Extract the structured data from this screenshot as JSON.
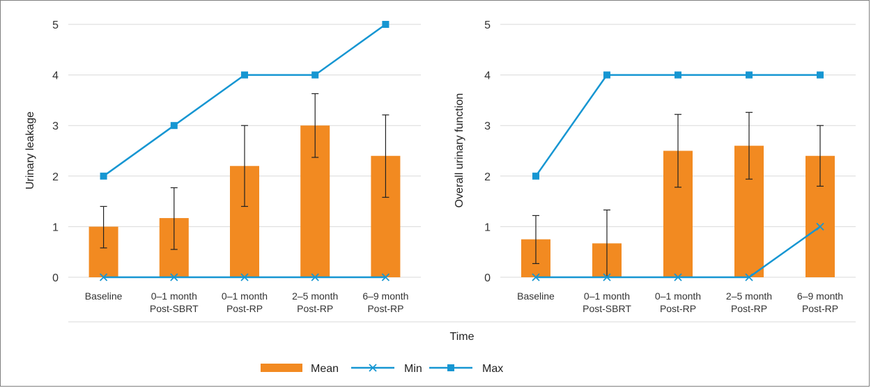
{
  "chart_data": [
    {
      "type": "bar",
      "title": "",
      "ylabel": "Urinary leakage",
      "xlabel": "Time",
      "ylim": [
        0,
        5
      ],
      "yticks": [
        0,
        1,
        2,
        3,
        4,
        5
      ],
      "grid": "horizontal",
      "categories": [
        [
          "Baseline"
        ],
        [
          "0–1 month",
          "Post-SBRT"
        ],
        [
          "0–1 month",
          "Post-RP"
        ],
        [
          "2–5 month",
          "Post-RP"
        ],
        [
          "6–9 month",
          "Post-RP"
        ]
      ],
      "series": [
        {
          "name": "Mean",
          "kind": "bar",
          "color": "#F28A21",
          "values": [
            1.0,
            1.17,
            2.2,
            3.0,
            2.4
          ],
          "error": [
            [
              0.58,
              1.4
            ],
            [
              0.55,
              1.77
            ],
            [
              1.4,
              3.0
            ],
            [
              2.37,
              3.63
            ],
            [
              1.58,
              3.21
            ]
          ]
        },
        {
          "name": "Min",
          "kind": "line",
          "marker": "x",
          "color": "#1696D2",
          "values": [
            0,
            0,
            0,
            0,
            0
          ]
        },
        {
          "name": "Max",
          "kind": "line",
          "marker": "square",
          "color": "#1696D2",
          "values": [
            2,
            3,
            4,
            4,
            5
          ]
        }
      ]
    },
    {
      "type": "bar",
      "title": "",
      "ylabel": "Overall urinary function",
      "xlabel": "Time",
      "ylim": [
        0,
        5
      ],
      "yticks": [
        0,
        1,
        2,
        3,
        4,
        5
      ],
      "grid": "horizontal",
      "categories": [
        [
          "Baseline"
        ],
        [
          "0–1 month",
          "Post-SBRT"
        ],
        [
          "0–1 month",
          "Post-RP"
        ],
        [
          "2–5 month",
          "Post-RP"
        ],
        [
          "6–9 month",
          "Post-RP"
        ]
      ],
      "series": [
        {
          "name": "Mean",
          "kind": "bar",
          "color": "#F28A21",
          "values": [
            0.75,
            0.67,
            2.5,
            2.6,
            2.4
          ],
          "error": [
            [
              0.27,
              1.22
            ],
            [
              0.0,
              1.33
            ],
            [
              1.78,
              3.22
            ],
            [
              1.94,
              3.26
            ],
            [
              1.8,
              3.0
            ]
          ]
        },
        {
          "name": "Min",
          "kind": "line",
          "marker": "x",
          "color": "#1696D2",
          "values": [
            0,
            0,
            0,
            0,
            1
          ]
        },
        {
          "name": "Max",
          "kind": "line",
          "marker": "square",
          "color": "#1696D2",
          "values": [
            2,
            4,
            4,
            4,
            4
          ]
        }
      ]
    }
  ],
  "shared_xlabel": "Time",
  "legend": {
    "position": "bottom-center",
    "items": [
      {
        "name": "Mean",
        "kind": "bar",
        "color": "#F28A21"
      },
      {
        "name": "Min",
        "kind": "line",
        "marker": "x",
        "color": "#1696D2"
      },
      {
        "name": "Max",
        "kind": "line",
        "marker": "square",
        "color": "#1696D2"
      }
    ]
  },
  "colors": {
    "bar": "#F28A21",
    "line": "#1696D2",
    "grid": "#D9D9D9",
    "errorbar": "#222222"
  }
}
